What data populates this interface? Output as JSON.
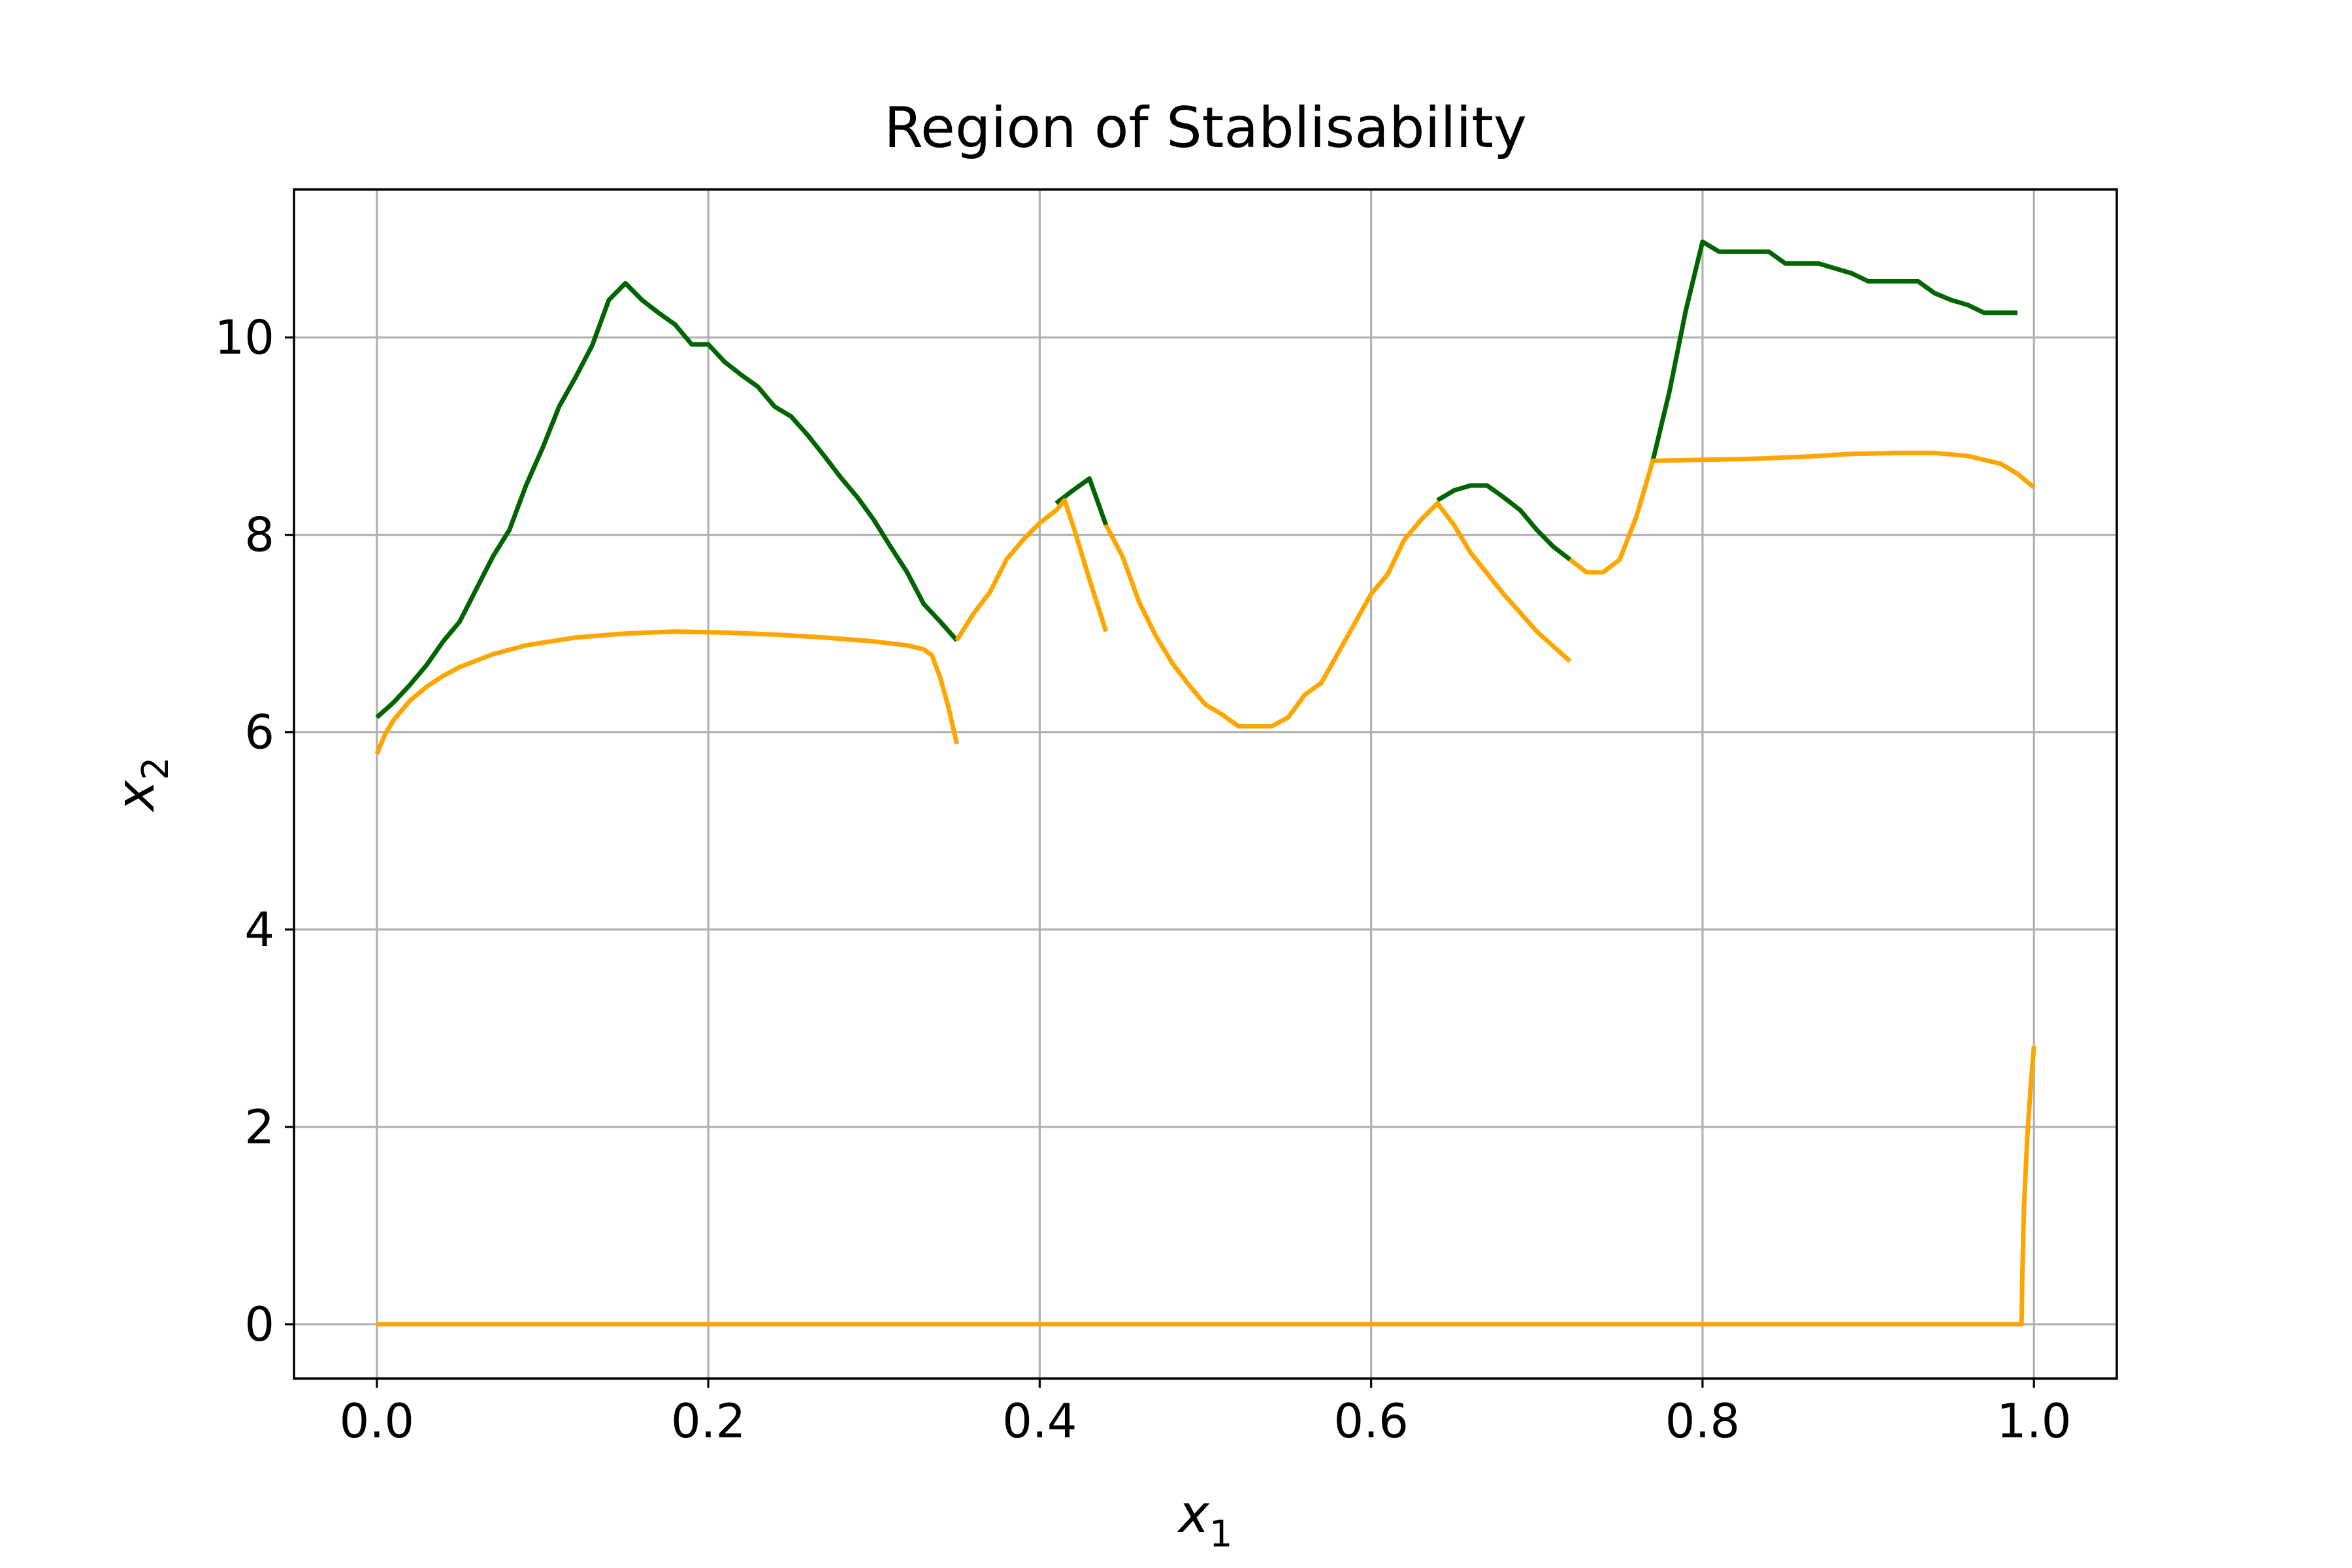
{
  "chart_data": {
    "type": "line",
    "title": "Region of Stablisability",
    "xlabel": "x1",
    "xlabel_base": "x",
    "xlabel_sub": "1",
    "ylabel": "x2",
    "ylabel_base": "x",
    "ylabel_sub": "2",
    "xlim": [
      -0.05,
      1.05
    ],
    "ylim": [
      -0.55,
      11.5
    ],
    "xticks": [
      0.0,
      0.2,
      0.4,
      0.6,
      0.8,
      1.0
    ],
    "xtick_labels": [
      "0.0",
      "0.2",
      "0.4",
      "0.6",
      "0.8",
      "1.0"
    ],
    "yticks": [
      0,
      2,
      4,
      6,
      8,
      10
    ],
    "ytick_labels": [
      "0",
      "2",
      "4",
      "6",
      "8",
      "10"
    ],
    "grid": true,
    "legend": "none",
    "series": [
      {
        "color": "#006400",
        "points": [
          [
            0.0,
            6.15
          ],
          [
            0.01,
            6.3
          ],
          [
            0.02,
            6.48
          ],
          [
            0.03,
            6.68
          ],
          [
            0.04,
            6.92
          ],
          [
            0.05,
            7.12
          ],
          [
            0.06,
            7.45
          ],
          [
            0.07,
            7.78
          ],
          [
            0.08,
            8.05
          ],
          [
            0.09,
            8.5
          ],
          [
            0.1,
            8.88
          ],
          [
            0.11,
            9.3
          ],
          [
            0.12,
            9.6
          ],
          [
            0.13,
            9.92
          ],
          [
            0.14,
            10.38
          ],
          [
            0.15,
            10.55
          ],
          [
            0.16,
            10.38
          ],
          [
            0.17,
            10.25
          ],
          [
            0.18,
            10.13
          ],
          [
            0.19,
            9.93
          ],
          [
            0.2,
            9.93
          ],
          [
            0.21,
            9.75
          ],
          [
            0.22,
            9.62
          ],
          [
            0.23,
            9.5
          ],
          [
            0.24,
            9.3
          ],
          [
            0.25,
            9.2
          ],
          [
            0.26,
            9.01
          ],
          [
            0.27,
            8.8
          ],
          [
            0.28,
            8.58
          ],
          [
            0.29,
            8.38
          ],
          [
            0.3,
            8.15
          ],
          [
            0.31,
            7.88
          ],
          [
            0.32,
            7.62
          ],
          [
            0.33,
            7.3
          ],
          [
            0.34,
            7.12
          ],
          [
            0.35,
            6.93
          ]
        ]
      },
      {
        "color": "#006400",
        "points": [
          [
            0.41,
            8.32
          ],
          [
            0.42,
            8.45
          ],
          [
            0.43,
            8.57
          ],
          [
            0.44,
            8.1
          ]
        ]
      },
      {
        "color": "#006400",
        "points": [
          [
            0.64,
            8.35
          ],
          [
            0.65,
            8.45
          ],
          [
            0.66,
            8.5
          ],
          [
            0.67,
            8.5
          ],
          [
            0.68,
            8.38
          ],
          [
            0.69,
            8.25
          ],
          [
            0.7,
            8.05
          ],
          [
            0.71,
            7.88
          ],
          [
            0.72,
            7.75
          ]
        ]
      },
      {
        "color": "#006400",
        "points": [
          [
            0.77,
            8.75
          ],
          [
            0.78,
            9.45
          ],
          [
            0.79,
            10.28
          ],
          [
            0.8,
            10.97
          ],
          [
            0.81,
            10.87
          ],
          [
            0.82,
            10.87
          ],
          [
            0.83,
            10.87
          ],
          [
            0.84,
            10.87
          ],
          [
            0.85,
            10.75
          ],
          [
            0.86,
            10.75
          ],
          [
            0.87,
            10.75
          ],
          [
            0.88,
            10.7
          ],
          [
            0.89,
            10.65
          ],
          [
            0.9,
            10.57
          ],
          [
            0.91,
            10.57
          ],
          [
            0.92,
            10.57
          ],
          [
            0.93,
            10.57
          ],
          [
            0.94,
            10.45
          ],
          [
            0.95,
            10.38
          ],
          [
            0.96,
            10.33
          ],
          [
            0.97,
            10.25
          ],
          [
            0.98,
            10.25
          ],
          [
            0.99,
            10.25
          ]
        ]
      },
      {
        "color": "#FFA500",
        "points": [
          [
            0.0,
            5.78
          ],
          [
            0.005,
            5.98
          ],
          [
            0.01,
            6.12
          ],
          [
            0.02,
            6.32
          ],
          [
            0.03,
            6.46
          ],
          [
            0.04,
            6.57
          ],
          [
            0.05,
            6.66
          ],
          [
            0.07,
            6.79
          ],
          [
            0.09,
            6.88
          ],
          [
            0.12,
            6.96
          ],
          [
            0.15,
            7.0
          ],
          [
            0.18,
            7.02
          ],
          [
            0.21,
            7.01
          ],
          [
            0.24,
            6.99
          ],
          [
            0.27,
            6.96
          ],
          [
            0.3,
            6.92
          ],
          [
            0.32,
            6.88
          ],
          [
            0.33,
            6.84
          ],
          [
            0.335,
            6.78
          ],
          [
            0.34,
            6.55
          ],
          [
            0.345,
            6.25
          ],
          [
            0.35,
            5.88
          ]
        ]
      },
      {
        "color": "#FFA500",
        "points": [
          [
            0.35,
            6.93
          ],
          [
            0.36,
            7.2
          ],
          [
            0.37,
            7.42
          ],
          [
            0.38,
            7.75
          ],
          [
            0.39,
            7.95
          ],
          [
            0.4,
            8.12
          ],
          [
            0.41,
            8.25
          ],
          [
            0.415,
            8.35
          ],
          [
            0.42,
            8.1
          ],
          [
            0.43,
            7.55
          ],
          [
            0.44,
            7.02
          ]
        ]
      },
      {
        "color": "#FFA500",
        "points": [
          [
            0.44,
            8.1
          ],
          [
            0.45,
            7.78
          ],
          [
            0.46,
            7.32
          ],
          [
            0.47,
            6.98
          ],
          [
            0.48,
            6.7
          ],
          [
            0.49,
            6.48
          ],
          [
            0.5,
            6.28
          ],
          [
            0.51,
            6.18
          ],
          [
            0.52,
            6.06
          ],
          [
            0.53,
            6.06
          ],
          [
            0.54,
            6.06
          ],
          [
            0.55,
            6.15
          ],
          [
            0.56,
            6.38
          ],
          [
            0.57,
            6.5
          ],
          [
            0.58,
            6.8
          ],
          [
            0.59,
            7.1
          ],
          [
            0.6,
            7.4
          ],
          [
            0.61,
            7.6
          ],
          [
            0.62,
            7.95
          ],
          [
            0.63,
            8.15
          ],
          [
            0.64,
            8.32
          ],
          [
            0.65,
            8.1
          ],
          [
            0.66,
            7.82
          ],
          [
            0.68,
            7.4
          ],
          [
            0.7,
            7.02
          ],
          [
            0.72,
            6.72
          ]
        ]
      },
      {
        "color": "#FFA500",
        "points": [
          [
            0.72,
            7.75
          ],
          [
            0.73,
            7.62
          ],
          [
            0.74,
            7.62
          ],
          [
            0.75,
            7.75
          ],
          [
            0.76,
            8.18
          ],
          [
            0.77,
            8.75
          ],
          [
            0.8,
            8.76
          ],
          [
            0.83,
            8.77
          ],
          [
            0.86,
            8.79
          ],
          [
            0.89,
            8.82
          ],
          [
            0.92,
            8.83
          ],
          [
            0.94,
            8.83
          ],
          [
            0.96,
            8.8
          ],
          [
            0.98,
            8.72
          ],
          [
            0.99,
            8.62
          ],
          [
            1.0,
            8.48
          ]
        ]
      },
      {
        "color": "#FFA500",
        "points": [
          [
            0.0,
            0.0
          ],
          [
            0.2,
            0.0
          ],
          [
            0.4,
            0.0
          ],
          [
            0.6,
            0.0
          ],
          [
            0.8,
            0.0
          ],
          [
            0.9925,
            0.0
          ],
          [
            0.993,
            0.5
          ],
          [
            0.994,
            1.2
          ],
          [
            0.996,
            1.9
          ],
          [
            0.998,
            2.4
          ],
          [
            1.0,
            2.82
          ]
        ]
      }
    ]
  }
}
